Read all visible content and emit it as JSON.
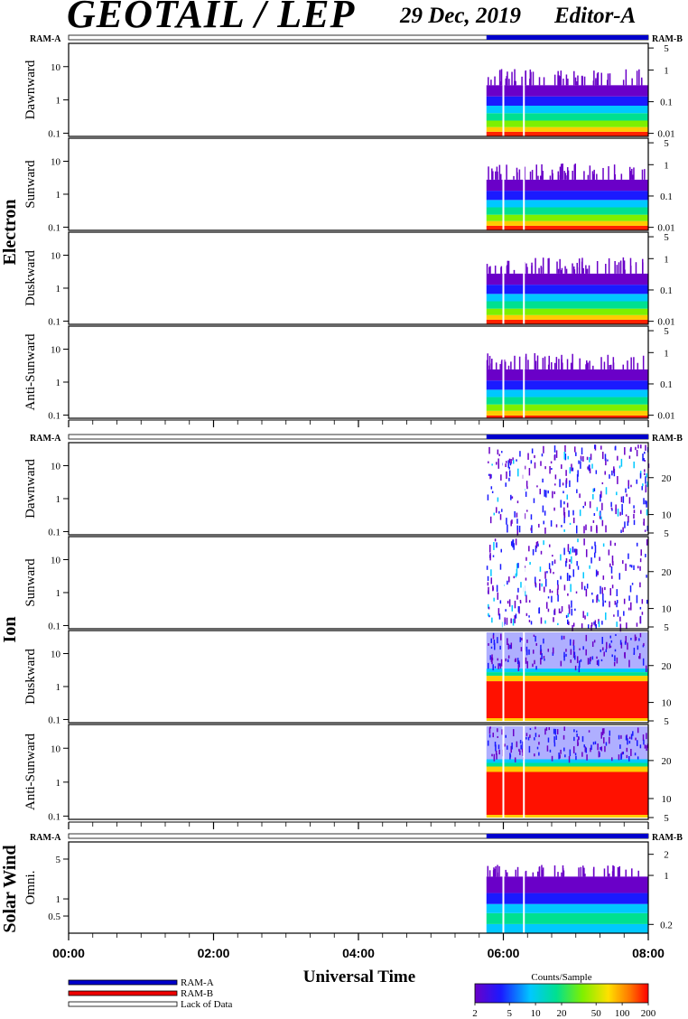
{
  "header": {
    "title": "GEOTAIL / LEP",
    "date": "29 Dec, 2019",
    "editor": "Editor-A"
  },
  "chart_data": {
    "type": "heatmap",
    "x_range": [
      "00:00",
      "08:00"
    ],
    "x_ticks": [
      "00:00",
      "02:00",
      "04:00",
      "06:00",
      "08:00"
    ],
    "xlabel": "Universal Time",
    "data_start": "05:46",
    "data_gaps": [
      "06:00",
      "06:17"
    ],
    "ram_labels": {
      "left": "RAM-A",
      "right": "RAM-B"
    },
    "groups": [
      {
        "name": "Electron",
        "panels": [
          {
            "label": "Dawnward",
            "left_ticks": [
              "0.1",
              "1",
              "10"
            ],
            "right_ticks": [
              "0.01",
              "0.1",
              "1",
              "5"
            ]
          },
          {
            "label": "Sunward",
            "left_ticks": [
              "0.1",
              "1",
              "10"
            ],
            "right_ticks": [
              "0.01",
              "0.1",
              "1",
              "5"
            ]
          },
          {
            "label": "Duskward",
            "left_ticks": [
              "0.1",
              "1",
              "10"
            ],
            "right_ticks": [
              "0.01",
              "0.1",
              "1",
              "5"
            ]
          },
          {
            "label": "Anti-Sunward",
            "left_ticks": [
              "0.1",
              "1",
              "10"
            ],
            "right_ticks": [
              "0.01",
              "0.1",
              "1",
              "5"
            ]
          }
        ]
      },
      {
        "name": "Ion",
        "panels": [
          {
            "label": "Dawnward",
            "left_ticks": [
              "0.1",
              "1",
              "10"
            ],
            "right_ticks": [
              "5",
              "10",
              "20"
            ]
          },
          {
            "label": "Sunward",
            "left_ticks": [
              "0.1",
              "1",
              "10"
            ],
            "right_ticks": [
              "5",
              "10",
              "20"
            ]
          },
          {
            "label": "Duskward",
            "left_ticks": [
              "0.1",
              "1",
              "10"
            ],
            "right_ticks": [
              "5",
              "10",
              "20"
            ]
          },
          {
            "label": "Anti-Sunward",
            "left_ticks": [
              "0.1",
              "1",
              "10"
            ],
            "right_ticks": [
              "5",
              "10",
              "20"
            ]
          }
        ]
      },
      {
        "name": "Solar Wind",
        "panels": [
          {
            "label": "Omni.",
            "left_ticks": [
              "0.5",
              "1",
              "5"
            ],
            "right_ticks": [
              "0.2",
              "1",
              "2"
            ]
          }
        ]
      }
    ],
    "legend": [
      {
        "label": "RAM-A",
        "color": "#0000cc"
      },
      {
        "label": "RAM-B",
        "color": "#ee0000"
      },
      {
        "label": "Lack of Data",
        "color": "#ffffff"
      }
    ],
    "colorbar": {
      "title": "Counts/Sample",
      "ticks": [
        "2",
        "5",
        "10",
        "20",
        "50",
        "100",
        "200"
      ],
      "range": [
        2,
        200
      ],
      "scale": "log"
    }
  }
}
